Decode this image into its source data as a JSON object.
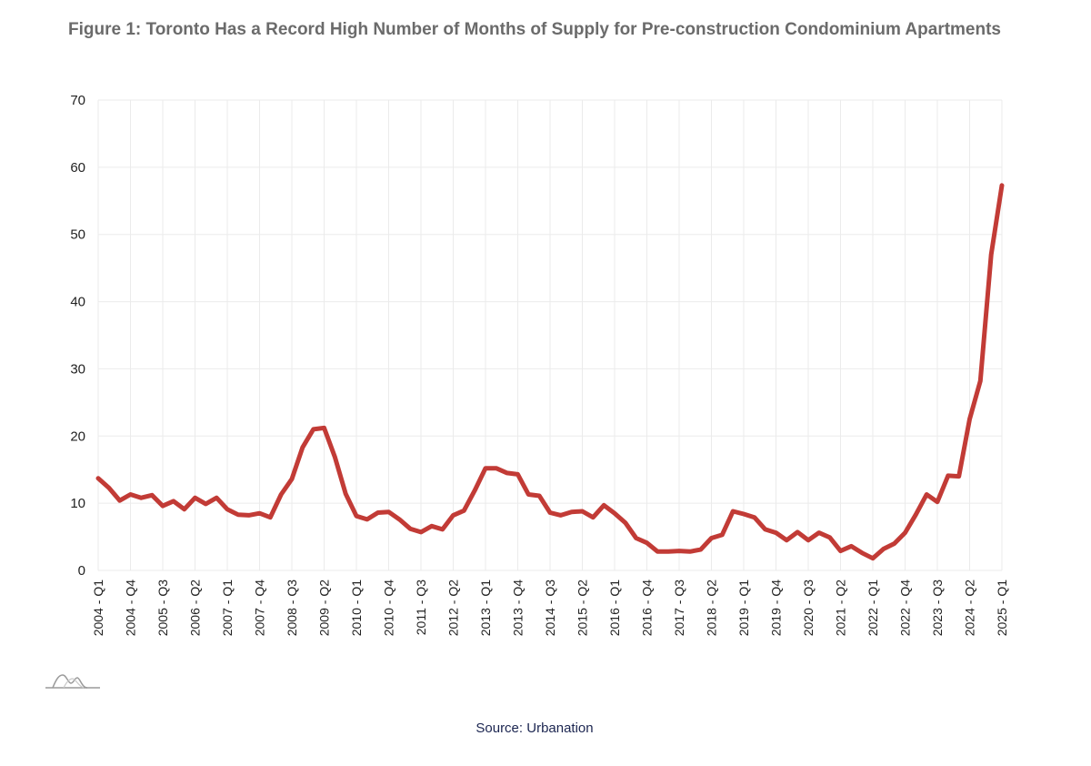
{
  "title": "Figure 1: Toronto Has a Record High Number of Months of Supply for Pre-construction Condominium Apartments",
  "source": "Source: Urbanation",
  "colors": {
    "line": "#c23b36",
    "grid": "#ebebeb",
    "title": "#6b6b6b",
    "source": "#1b2550"
  },
  "logo_icon": "mountain-logo-icon",
  "chart_data": {
    "type": "line",
    "title": "Figure 1: Toronto Has a Record High Number of Months of Supply for Pre-construction Condominium Apartments",
    "xlabel": "",
    "ylabel": "",
    "ylim": [
      0,
      70
    ],
    "yticks": [
      0,
      10,
      20,
      30,
      40,
      50,
      60,
      70
    ],
    "grid": true,
    "start_year": 2004,
    "start_quarter": 1,
    "tick_every": 3,
    "series": [
      {
        "name": "Months of Supply",
        "values": [
          13.7,
          12.3,
          10.4,
          11.3,
          10.8,
          11.2,
          9.6,
          10.3,
          9.1,
          10.8,
          9.9,
          10.8,
          9.1,
          8.3,
          8.2,
          8.5,
          7.9,
          11.3,
          13.6,
          18.3,
          21.0,
          21.2,
          16.9,
          11.4,
          8.1,
          7.6,
          8.6,
          8.7,
          7.6,
          6.2,
          5.7,
          6.6,
          6.1,
          8.2,
          8.9,
          11.9,
          15.2,
          15.2,
          14.5,
          14.3,
          11.3,
          11.1,
          8.6,
          8.2,
          8.7,
          8.8,
          7.9,
          9.7,
          8.5,
          7.1,
          4.8,
          4.1,
          2.8,
          2.8,
          2.9,
          2.8,
          3.1,
          4.8,
          5.3,
          8.8,
          8.4,
          7.9,
          6.1,
          5.6,
          4.5,
          5.7,
          4.5,
          5.6,
          4.9,
          2.9,
          3.6,
          2.6,
          1.8,
          3.2,
          4.0,
          5.6,
          8.3,
          11.3,
          10.2,
          14.1,
          14.0,
          22.5,
          28.2,
          47.0,
          57.3
        ]
      }
    ]
  }
}
